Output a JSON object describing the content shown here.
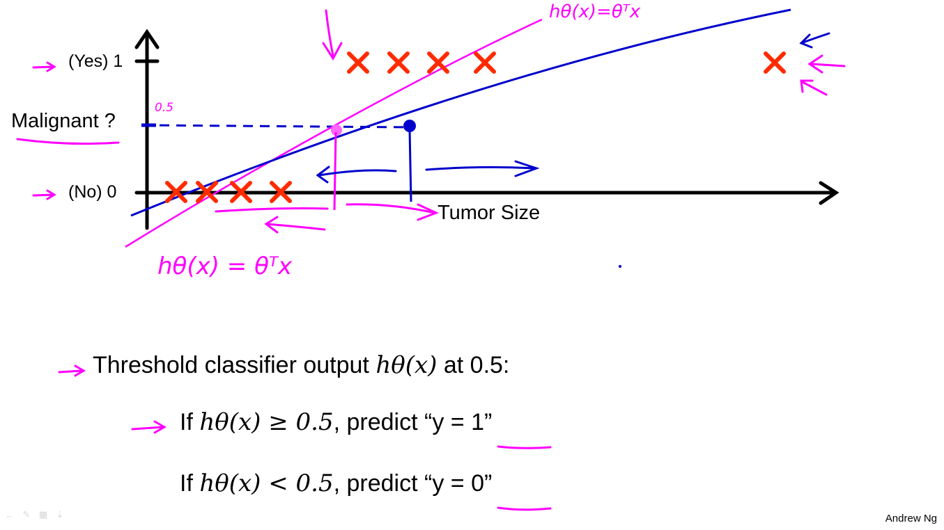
{
  "plot": {
    "y_axis_label": "Malignant ?",
    "yes_tick_label": "(Yes) 1",
    "no_tick_label": "(No) 0",
    "x_axis_label": "Tumor Size",
    "threshold_annotation": "0.5",
    "hypothesis_label_top": "hθ(x)=θᵀx",
    "hypothesis_label_bottom": "hθ(x) = θᵀx",
    "malignant_count": 5,
    "benign_count": 4,
    "marker_color": "#ff2b00",
    "annotation_color": "#ff00ff",
    "line_color": "#0000cc"
  },
  "bullets": {
    "main_prefix": "Threshold classifier output",
    "main_math": "hθ(x)",
    "main_suffix": "at 0.5:",
    "rule1_prefix": "If",
    "rule1_math": "hθ(x) ≥ 0.5",
    "rule1_suffix": ", predict “y = 1”",
    "rule2_prefix": "If",
    "rule2_math": "hθ(x) < 0.5",
    "rule2_suffix": ", predict “y = 0”"
  },
  "footer": {
    "credit": "Andrew Ng",
    "toolbar_icons": [
      "back-arrow-icon",
      "pen-icon",
      "slides-icon",
      "menu-icon"
    ]
  }
}
